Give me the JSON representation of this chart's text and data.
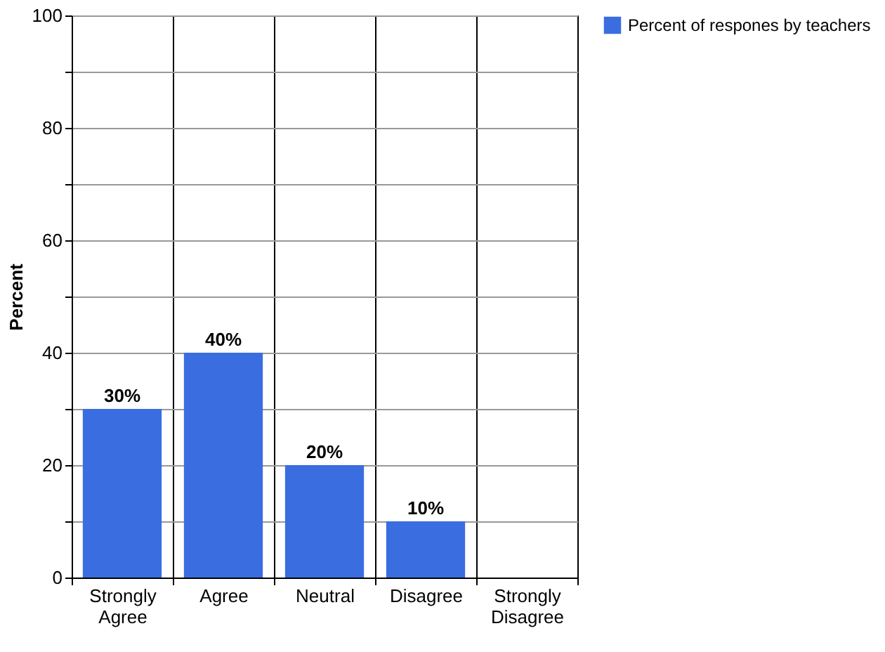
{
  "chart_data": {
    "type": "bar",
    "ylabel": "Percent",
    "categories": [
      "Strongly Agree",
      "Agree",
      "Neutral",
      "Disagree",
      "Strongly Disagree"
    ],
    "series": [
      {
        "name": "Percent of respones by teachers",
        "color": "#3a6ee0",
        "values": [
          30,
          40,
          20,
          10,
          0
        ]
      }
    ],
    "value_labels": [
      "30%",
      "40%",
      "20%",
      "10%",
      null
    ],
    "ylim": [
      0,
      100
    ],
    "yticks": [
      0,
      {
        "value": 10,
        "label": null
      },
      20,
      {
        "value": 30,
        "label": null
      },
      40,
      {
        "value": 50,
        "label": null
      },
      60,
      {
        "value": 70,
        "label": null
      },
      80,
      {
        "value": 90,
        "label": null
      },
      100
    ],
    "grid": true,
    "legend": "right"
  }
}
